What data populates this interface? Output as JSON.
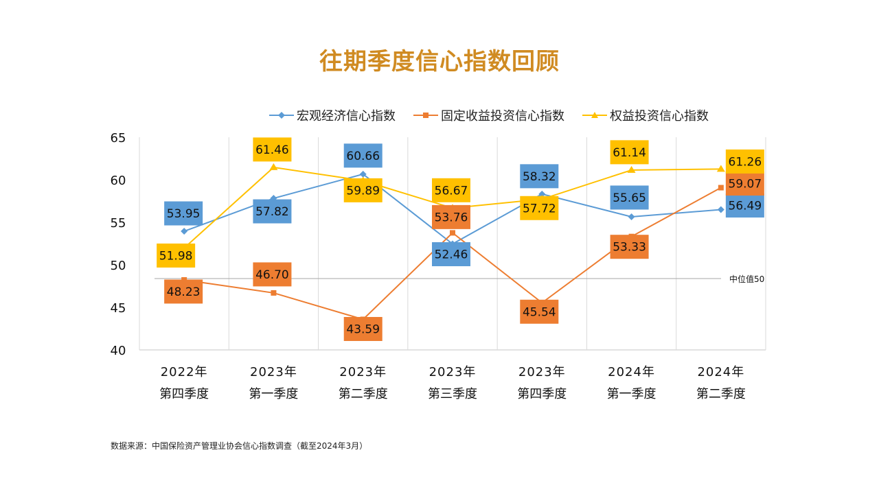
{
  "title": "往期季度信心指数回顾",
  "colors": {
    "title": "#D08B22",
    "macro": "#5B9BD5",
    "fixed": "#ED7D31",
    "equity": "#FFC000",
    "grid": "#D9D9D9",
    "median": "#A6A6A6"
  },
  "source": "数据来源：中国保险资产管理业协会信心指数调查（截至2024年3月）",
  "chart_data": {
    "type": "line",
    "title": "往期季度信心指数回顾",
    "xlabel": "",
    "ylabel": "",
    "ylim": [
      40,
      65
    ],
    "yticks": [
      40,
      45,
      50,
      55,
      60,
      65
    ],
    "grid": "vertical",
    "legend_position": "top",
    "categories": [
      [
        "2022年",
        "第四季度"
      ],
      [
        "2023年",
        "第一季度"
      ],
      [
        "2023年",
        "第二季度"
      ],
      [
        "2023年",
        "第三季度"
      ],
      [
        "2023年",
        "第四季度"
      ],
      [
        "2024年",
        "第一季度"
      ],
      [
        "2024年",
        "第二季度"
      ]
    ],
    "series": [
      {
        "key": "macro",
        "name": "宏观经济信心指数",
        "marker": "diamond",
        "values": [
          53.95,
          57.82,
          60.66,
          52.46,
          58.32,
          55.65,
          56.49
        ],
        "labels": [
          "53.95",
          "57.82",
          "60.66",
          "52.46",
          "58.32",
          "55.65",
          "56.49"
        ]
      },
      {
        "key": "fixed",
        "name": "固定收益投资信心指数",
        "marker": "square",
        "values": [
          48.23,
          46.7,
          43.59,
          53.76,
          45.54,
          53.33,
          59.07
        ],
        "labels": [
          "48.23",
          "46.70",
          "43.59",
          "53.76",
          "45.54",
          "53.33",
          "59.07"
        ]
      },
      {
        "key": "equity",
        "name": "权益投资信心指数",
        "marker": "triangle",
        "values": [
          51.98,
          61.46,
          59.89,
          56.67,
          57.72,
          61.14,
          61.26
        ],
        "labels": [
          "51.98",
          "61.46",
          "59.89",
          "56.67",
          "57.72",
          "61.14",
          "61.26"
        ]
      }
    ],
    "annotations": [
      {
        "type": "hline",
        "text": "中位值50",
        "value": 50
      }
    ]
  }
}
